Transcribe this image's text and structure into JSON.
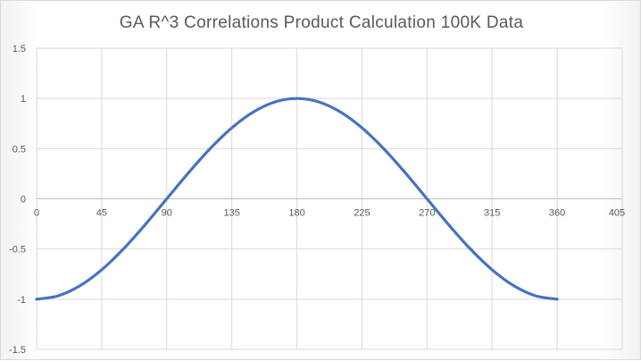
{
  "chart_data": {
    "type": "scatter",
    "title": "GA R^3 Correlations Product Calculation 100K Data",
    "xlabel": "",
    "ylabel": "",
    "xlim": [
      0,
      405
    ],
    "ylim": [
      -1.5,
      1.5
    ],
    "x_ticks": [
      "0",
      "45",
      "90",
      "135",
      "180",
      "225",
      "270",
      "315",
      "360",
      "405"
    ],
    "y_ticks": [
      "1.5",
      "1",
      "0.5",
      "0",
      "-0.5",
      "-1",
      "-1.5"
    ],
    "grid": true,
    "legend": "none",
    "series": [
      {
        "name": "Series1",
        "color": "#4472c4",
        "x": [
          0,
          15,
          30,
          45,
          60,
          75,
          90,
          105,
          120,
          135,
          150,
          165,
          180,
          195,
          210,
          225,
          240,
          255,
          270,
          285,
          300,
          315,
          330,
          345,
          360
        ],
        "y": [
          -1,
          -0.966,
          -0.866,
          -0.707,
          -0.5,
          -0.259,
          0,
          0.259,
          0.5,
          0.707,
          0.866,
          0.966,
          1,
          0.966,
          0.866,
          0.707,
          0.5,
          0.259,
          0,
          -0.259,
          -0.5,
          -0.707,
          -0.866,
          -0.966,
          -1
        ]
      }
    ]
  }
}
